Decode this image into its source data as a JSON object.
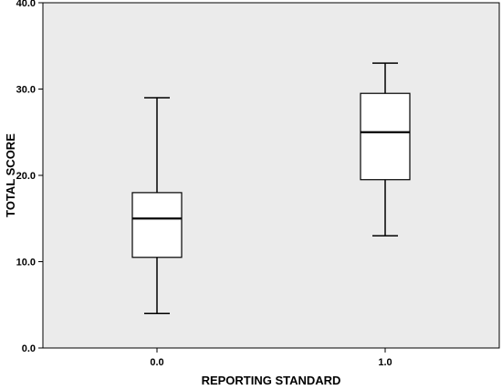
{
  "chart_data": {
    "type": "box",
    "xlabel": "REPORTING STANDARD",
    "ylabel": "TOTAL SCORE",
    "categories": [
      "0.0",
      "1.0"
    ],
    "ylim": [
      0,
      40
    ],
    "yticks": [
      "0.0",
      "10.0",
      "20.0",
      "30.0",
      "40.0"
    ],
    "boxes": [
      {
        "category": "0.0",
        "min": 4,
        "q1": 10.5,
        "median": 15,
        "q3": 18,
        "max": 29
      },
      {
        "category": "1.0",
        "min": 13,
        "q1": 19.5,
        "median": 25,
        "q3": 29.5,
        "max": 33
      }
    ],
    "grid": false,
    "colors": {
      "plot_background": "#ebebeb",
      "box_fill": "#ffffff",
      "stroke": "#000000"
    }
  }
}
